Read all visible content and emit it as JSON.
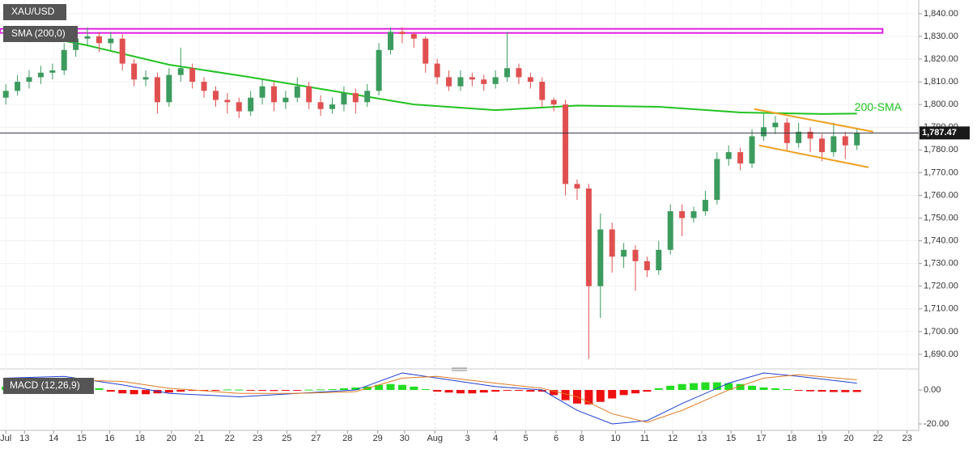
{
  "chart_data": {
    "type": "candlestick",
    "title": "XAU/USD",
    "candle_colors": {
      "up": "#3c9b5e",
      "down": "#e05050"
    },
    "xlim": [
      -0.5,
      78.3
    ],
    "ylim": [
      1685,
      1846
    ],
    "yticks": [
      {
        "value": 1840,
        "label": "1,840.00"
      },
      {
        "value": 1830,
        "label": "1,830.00"
      },
      {
        "value": 1820,
        "label": "1,820.00"
      },
      {
        "value": 1810,
        "label": "1,810.00"
      },
      {
        "value": 1800,
        "label": "1,800.00"
      },
      {
        "value": 1790,
        "label": "1,790.00"
      },
      {
        "value": 1780,
        "label": "1,780.00"
      },
      {
        "value": 1770,
        "label": "1,770.00"
      },
      {
        "value": 1760,
        "label": "1,760.00"
      },
      {
        "value": 1750,
        "label": "1,750.00"
      },
      {
        "value": 1740,
        "label": "1,740.00"
      },
      {
        "value": 1730,
        "label": "1,730.00"
      },
      {
        "value": 1720,
        "label": "1,720.00"
      },
      {
        "value": 1710,
        "label": "1,710.00"
      },
      {
        "value": 1700,
        "label": "1,700.00"
      },
      {
        "value": 1690,
        "label": "1,690.00"
      }
    ],
    "xticks": [
      {
        "value": 0,
        "label": "Jul"
      },
      {
        "value": 1.6,
        "label": "13"
      },
      {
        "value": 4.1,
        "label": "14"
      },
      {
        "value": 6.5,
        "label": "15"
      },
      {
        "value": 8.9,
        "label": "16"
      },
      {
        "value": 11.5,
        "label": "18"
      },
      {
        "value": 14.2,
        "label": "20"
      },
      {
        "value": 16.6,
        "label": "21"
      },
      {
        "value": 19.2,
        "label": "22"
      },
      {
        "value": 21.6,
        "label": "23"
      },
      {
        "value": 24.1,
        "label": "25"
      },
      {
        "value": 26.6,
        "label": "27"
      },
      {
        "value": 29.3,
        "label": "28"
      },
      {
        "value": 31.9,
        "label": "29"
      },
      {
        "value": 34.2,
        "label": "30"
      },
      {
        "value": 36.8,
        "label": "Aug"
      },
      {
        "value": 39.6,
        "label": "3"
      },
      {
        "value": 42.0,
        "label": "4"
      },
      {
        "value": 44.6,
        "label": "5"
      },
      {
        "value": 47.2,
        "label": "6"
      },
      {
        "value": 49.4,
        "label": "8"
      },
      {
        "value": 52.3,
        "label": "10"
      },
      {
        "value": 54.8,
        "label": "11"
      },
      {
        "value": 57.2,
        "label": "12"
      },
      {
        "value": 59.7,
        "label": "13"
      },
      {
        "value": 62.2,
        "label": "15"
      },
      {
        "value": 64.8,
        "label": "17"
      },
      {
        "value": 67.4,
        "label": "18"
      },
      {
        "value": 70.0,
        "label": "19"
      },
      {
        "value": 72.3,
        "label": "20"
      },
      {
        "value": 74.8,
        "label": "22"
      },
      {
        "value": 77.3,
        "label": "23"
      }
    ],
    "candles": [
      [
        1803,
        1809,
        1800,
        1806
      ],
      [
        1806,
        1813,
        1804,
        1810
      ],
      [
        1810,
        1815,
        1807,
        1812
      ],
      [
        1812,
        1817,
        1809,
        1814
      ],
      [
        1814,
        1818,
        1811,
        1815
      ],
      [
        1815,
        1827,
        1813,
        1824
      ],
      [
        1824,
        1832,
        1821,
        1829
      ],
      [
        1829,
        1834,
        1826,
        1830
      ],
      [
        1830,
        1832,
        1823,
        1827
      ],
      [
        1827,
        1832,
        1824,
        1829
      ],
      [
        1829,
        1831,
        1815,
        1818
      ],
      [
        1818,
        1820,
        1808,
        1811
      ],
      [
        1811,
        1815,
        1808,
        1812
      ],
      [
        1812,
        1814,
        1796,
        1801
      ],
      [
        1801,
        1816,
        1799,
        1813
      ],
      [
        1813,
        1825,
        1810,
        1816
      ],
      [
        1816,
        1818,
        1807,
        1810
      ],
      [
        1810,
        1812,
        1803,
        1806
      ],
      [
        1806,
        1808,
        1799,
        1802
      ],
      [
        1802,
        1805,
        1796,
        1801
      ],
      [
        1801,
        1803,
        1794,
        1797
      ],
      [
        1797,
        1806,
        1795,
        1803
      ],
      [
        1803,
        1811,
        1800,
        1808
      ],
      [
        1808,
        1810,
        1797,
        1801
      ],
      [
        1801,
        1806,
        1798,
        1803
      ],
      [
        1803,
        1812,
        1801,
        1808
      ],
      [
        1808,
        1810,
        1798,
        1801
      ],
      [
        1801,
        1804,
        1795,
        1798
      ],
      [
        1798,
        1803,
        1796,
        1800
      ],
      [
        1800,
        1808,
        1797,
        1805
      ],
      [
        1805,
        1807,
        1796,
        1801
      ],
      [
        1801,
        1809,
        1799,
        1806
      ],
      [
        1806,
        1827,
        1804,
        1824
      ],
      [
        1824,
        1834,
        1822,
        1832
      ],
      [
        1832,
        1834,
        1827,
        1831
      ],
      [
        1831,
        1832,
        1825,
        1829
      ],
      [
        1829,
        1830,
        1814,
        1818
      ],
      [
        1818,
        1820,
        1809,
        1812
      ],
      [
        1812,
        1815,
        1806,
        1808
      ],
      [
        1808,
        1815,
        1806,
        1812
      ],
      [
        1812,
        1814,
        1808,
        1811
      ],
      [
        1811,
        1813,
        1806,
        1809
      ],
      [
        1809,
        1815,
        1807,
        1812
      ],
      [
        1812,
        1832,
        1810,
        1816
      ],
      [
        1816,
        1818,
        1809,
        1812
      ],
      [
        1812,
        1814,
        1807,
        1810
      ],
      [
        1810,
        1812,
        1799,
        1802
      ],
      [
        1802,
        1803,
        1797,
        1800
      ],
      [
        1800,
        1802,
        1760,
        1765
      ],
      [
        1765,
        1767,
        1758,
        1763
      ],
      [
        1763,
        1765,
        1688,
        1720
      ],
      [
        1720,
        1752,
        1706,
        1745
      ],
      [
        1745,
        1748,
        1726,
        1733
      ],
      [
        1733,
        1739,
        1728,
        1736
      ],
      [
        1736,
        1738,
        1718,
        1731
      ],
      [
        1731,
        1733,
        1724,
        1727
      ],
      [
        1727,
        1740,
        1725,
        1736
      ],
      [
        1736,
        1756,
        1734,
        1753
      ],
      [
        1753,
        1756,
        1742,
        1750
      ],
      [
        1750,
        1755,
        1748,
        1753
      ],
      [
        1753,
        1762,
        1751,
        1758
      ],
      [
        1758,
        1779,
        1756,
        1776
      ],
      [
        1776,
        1782,
        1773,
        1779
      ],
      [
        1779,
        1781,
        1771,
        1774
      ],
      [
        1774,
        1789,
        1772,
        1786
      ],
      [
        1786,
        1796,
        1784,
        1790
      ],
      [
        1790,
        1795,
        1787,
        1792
      ],
      [
        1792,
        1794,
        1780,
        1783
      ],
      [
        1783,
        1792,
        1781,
        1788
      ],
      [
        1788,
        1790,
        1779,
        1785
      ],
      [
        1785,
        1787,
        1775,
        1779
      ],
      [
        1779,
        1792,
        1777,
        1786
      ],
      [
        1786,
        1788,
        1776,
        1782
      ],
      [
        1782,
        1789,
        1780,
        1787.47
      ]
    ],
    "last_price": {
      "value": 1787.47,
      "label": "1,787.47"
    },
    "sma": {
      "name": "SMA (200,0)",
      "color": "#22c322",
      "annotation": "200-SMA",
      "x": [
        0,
        7,
        14,
        21,
        28,
        35,
        42,
        49,
        56,
        63,
        70,
        73
      ],
      "values": [
        1833,
        1826,
        1817.5,
        1812,
        1806,
        1800,
        1797.5,
        1799.5,
        1799,
        1796.5,
        1795.8,
        1796
      ]
    },
    "resistance": {
      "color": "#e020e0",
      "xlim": [
        -0.5,
        75.2
      ],
      "values": [
        1831.5,
        1833.3
      ]
    },
    "channel": {
      "color": "#f0a020",
      "lines": [
        {
          "x": [
            64.2,
            74.4
          ],
          "values": [
            1798,
            1788
          ]
        },
        {
          "x": [
            64.6,
            74.0
          ],
          "values": [
            1782,
            1772.3
          ]
        }
      ]
    },
    "macd": {
      "name": "MACD (12,26,9)",
      "ylim": [
        -23.8,
        10.5
      ],
      "yticks": [
        {
          "value": 0,
          "label": "0.00"
        },
        {
          "value": -20,
          "label": "-20.00"
        }
      ],
      "histogram_colors": {
        "up": "#22dd22",
        "down": "#ee1111"
      },
      "histogram": [
        2,
        2,
        2.5,
        2.5,
        2,
        2,
        2.5,
        2,
        1,
        -1,
        -2,
        -2.5,
        -2.5,
        -2,
        -1.5,
        -1,
        -0.5,
        -0.5,
        -0.3,
        0.3,
        0.2,
        -0.2,
        -0.5,
        -0.6,
        -0.5,
        -0.3,
        0.2,
        0.3,
        0.5,
        1,
        1.5,
        2,
        3,
        3.5,
        3,
        2,
        0.5,
        -1,
        -1.5,
        -2,
        -2,
        -1.5,
        -1,
        -0.5,
        -0.5,
        -1,
        -1,
        -3,
        -6,
        -8,
        -8.5,
        -7,
        -5,
        -3,
        -2,
        -1,
        1,
        2.5,
        3.5,
        4,
        4.5,
        4.5,
        4,
        3.5,
        2.5,
        1.5,
        1,
        0.5,
        -0.3,
        -0.8,
        -1,
        -1.2,
        -1.3,
        -1.2
      ],
      "x": [
        0,
        5,
        10,
        14,
        20,
        25,
        30,
        34,
        37,
        42,
        46,
        49,
        52,
        55,
        58,
        62,
        65,
        68,
        73
      ],
      "series": [
        {
          "color": "#1f3fd0",
          "values": [
            7,
            8,
            3,
            -2,
            -4,
            -2,
            0,
            10,
            7,
            2,
            0,
            -12,
            -20,
            -18,
            -8,
            4,
            10,
            8,
            4
          ]
        },
        {
          "color": "#e07a20",
          "values": [
            5,
            6,
            5,
            1,
            -2,
            -2,
            -1,
            7,
            8,
            4,
            1,
            -4,
            -14,
            -19,
            -12,
            0,
            7,
            9,
            6
          ]
        }
      ]
    }
  }
}
